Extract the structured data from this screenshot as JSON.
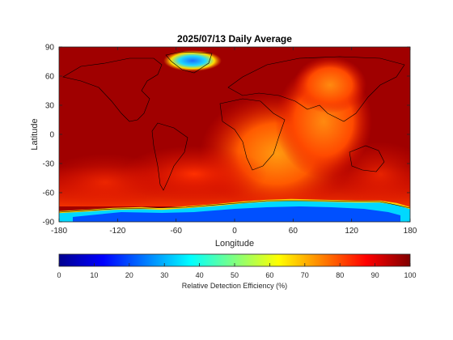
{
  "chart_data": {
    "type": "heatmap",
    "title": "2025/07/13 Daily Average",
    "xlabel": "Longitude",
    "ylabel": "Latitude",
    "xlim": [
      -180,
      180
    ],
    "ylim": [
      -90,
      90
    ],
    "xticks": [
      -180,
      -120,
      -60,
      0,
      60,
      120,
      180
    ],
    "yticks": [
      90,
      60,
      30,
      0,
      -30,
      -60,
      -90
    ],
    "colorbar": {
      "label": "Relative Detection Efficiency (%)",
      "range": [
        0,
        100
      ],
      "ticks": [
        0,
        10,
        20,
        30,
        40,
        50,
        60,
        70,
        80,
        90,
        100
      ],
      "colormap": "jet"
    },
    "field_summary": {
      "background_efficiency": 98,
      "lowest_region": "Antarctica (lon -170 to 160, lat -90 to -73)",
      "lowest_value": 15,
      "greenland_patch_value": 35,
      "highest_region_value": 100
    }
  }
}
